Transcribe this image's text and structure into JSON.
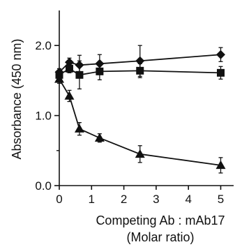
{
  "chart_data": {
    "type": "line",
    "title": "",
    "ylabel": "Absorbance (450 nm)",
    "xlabel_line1": "Competing Ab : mAb17",
    "xlabel_line2": "(Molar ratio)",
    "xlim": [
      0,
      5.4
    ],
    "ylim": [
      0,
      2.5
    ],
    "xticks": [
      0,
      1,
      2,
      3,
      4,
      5
    ],
    "yticks": [
      0.0,
      1.0,
      2.0
    ],
    "ytick_labels": [
      "0.0",
      "1.0",
      "2.0"
    ],
    "grid": false,
    "legend": "none",
    "series": [
      {
        "marker": "diamond",
        "x": [
          0,
          0.3125,
          0.625,
          1.25,
          2.5,
          5
        ],
        "y": [
          1.62,
          1.76,
          1.72,
          1.74,
          1.78,
          1.87
        ],
        "err": [
          0.05,
          0.06,
          0.14,
          0.13,
          0.22,
          0.1
        ]
      },
      {
        "marker": "square",
        "x": [
          0,
          0.3125,
          0.625,
          1.25,
          2.5,
          5
        ],
        "y": [
          1.58,
          1.67,
          1.58,
          1.63,
          1.64,
          1.61
        ],
        "err": [
          0.05,
          0.06,
          0.2,
          0.12,
          0.1,
          0.09
        ]
      },
      {
        "marker": "triangle",
        "x": [
          0,
          0.3125,
          0.625,
          1.25,
          2.5,
          5
        ],
        "y": [
          1.52,
          1.28,
          0.81,
          0.68,
          0.45,
          0.29
        ],
        "err": [
          0.06,
          0.08,
          0.09,
          0.06,
          0.12,
          0.11
        ]
      }
    ]
  }
}
